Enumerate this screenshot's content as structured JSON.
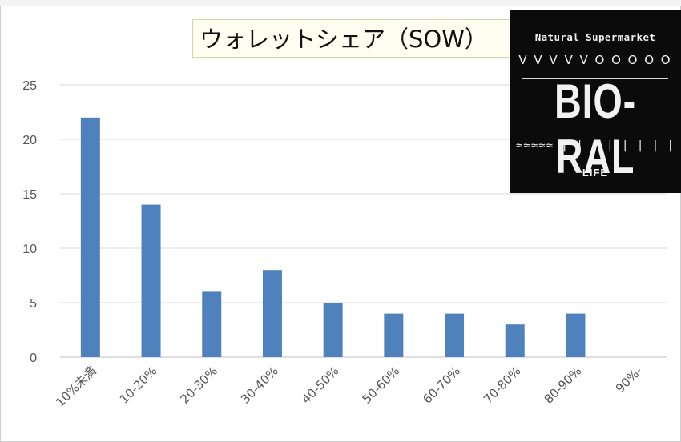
{
  "chart_data": {
    "type": "bar",
    "title": "ウォレットシェア（SOW）",
    "categories": [
      "10%未満",
      "10-20%",
      "20-30%",
      "30-40%",
      "40-50%",
      "50-60%",
      "60-70%",
      "70-80%",
      "80-90%",
      "90%-"
    ],
    "values": [
      22,
      14,
      6,
      8,
      5,
      4,
      4,
      3,
      4,
      0
    ],
    "yticks": [
      "0",
      "5",
      "10",
      "15",
      "20",
      "25"
    ],
    "ylim": [
      0,
      25
    ],
    "grid": true,
    "legend": "none",
    "bar_color": "#4f81bd"
  },
  "logo": {
    "line1": "Natural Supermarket",
    "line2": "V V V V V O O O O O",
    "name": "BIO-RAL",
    "line4": "≈≈≈≈≈ | | | | | | | |",
    "tagline": "LIFE"
  }
}
